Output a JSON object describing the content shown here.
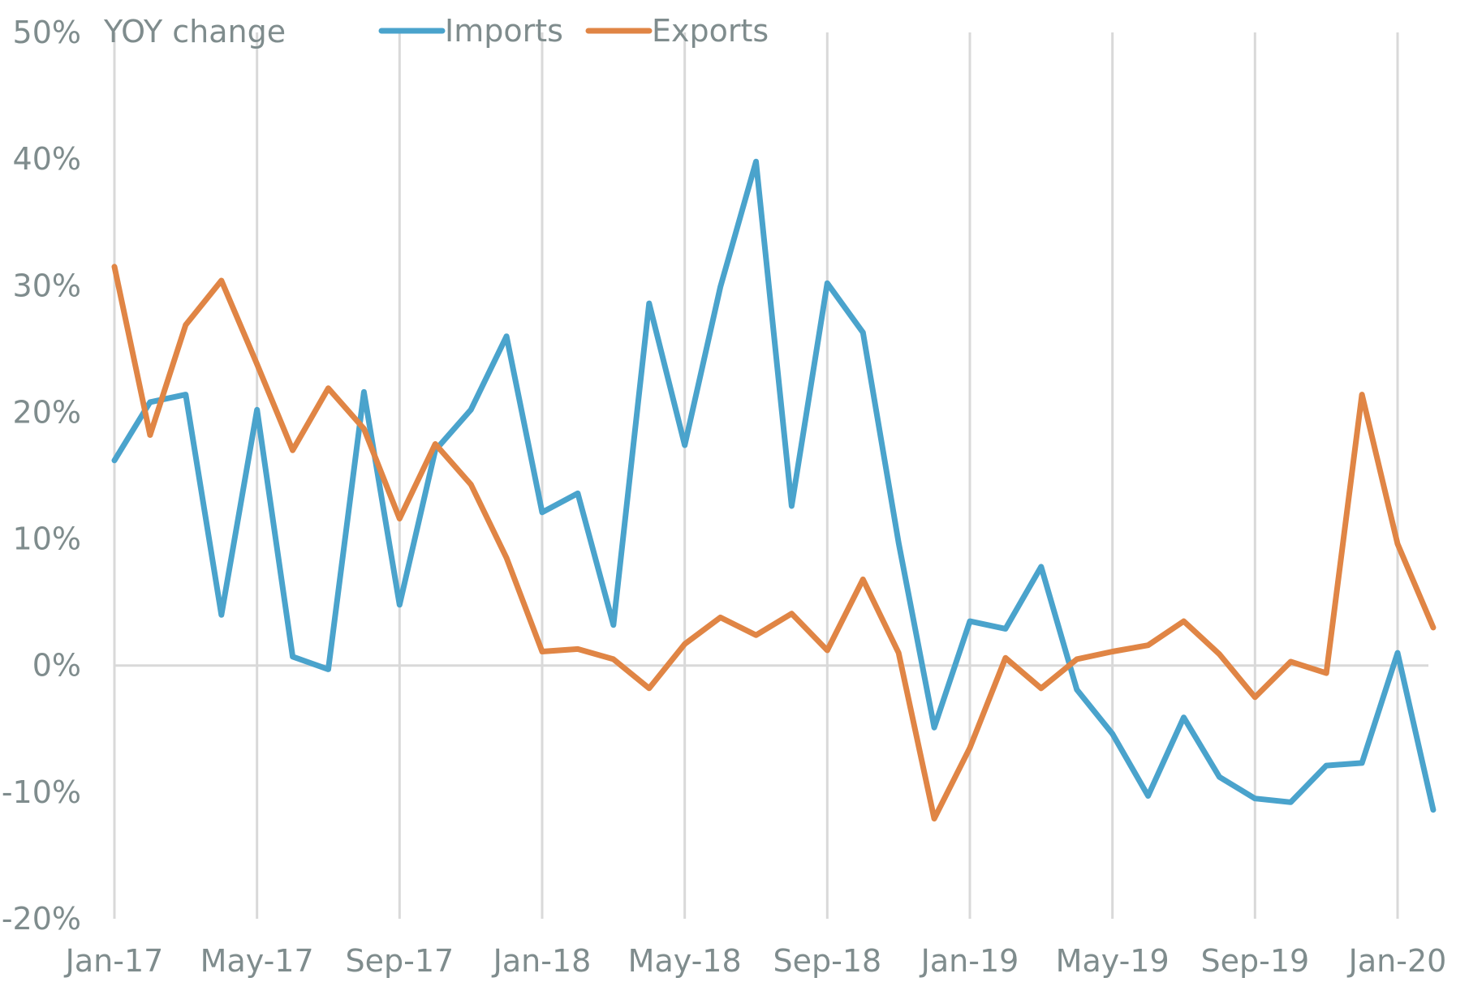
{
  "chart_data": {
    "type": "line",
    "title": "YOY change",
    "xlabel": "",
    "ylabel": "",
    "ylim": [
      -20,
      50
    ],
    "y_ticks": [
      -20,
      -10,
      0,
      10,
      20,
      30,
      40,
      50
    ],
    "y_tick_labels": [
      "-20%",
      "-10%",
      "0%",
      "10%",
      "20%",
      "30%",
      "40%",
      "50%"
    ],
    "x_tick_labels": [
      "Jan-17",
      "May-17",
      "Sep-17",
      "Jan-18",
      "May-18",
      "Sep-18",
      "Jan-19",
      "May-19",
      "Sep-19",
      "Jan-20"
    ],
    "x_tick_indices": [
      0,
      4,
      8,
      12,
      16,
      20,
      24,
      28,
      32,
      36
    ],
    "x": [
      "Jan-17",
      "Feb-17",
      "Mar-17",
      "Apr-17",
      "May-17",
      "Jun-17",
      "Jul-17",
      "Aug-17",
      "Sep-17",
      "Oct-17",
      "Nov-17",
      "Dec-17",
      "Jan-18",
      "Feb-18",
      "Mar-18",
      "Apr-18",
      "May-18",
      "Jun-18",
      "Jul-18",
      "Aug-18",
      "Sep-18",
      "Oct-18",
      "Nov-18",
      "Dec-18",
      "Jan-19",
      "Feb-19",
      "Mar-19",
      "Apr-19",
      "May-19",
      "Jun-19",
      "Jul-19",
      "Aug-19",
      "Sep-19",
      "Oct-19",
      "Nov-19",
      "Dec-19",
      "Jan-20",
      "Feb-20"
    ],
    "grid": "vertical",
    "legend_position": "top",
    "series": [
      {
        "name": "Imports",
        "color": "#4aa3cc",
        "values": [
          16.2,
          20.8,
          21.4,
          4.0,
          20.2,
          0.7,
          -0.3,
          21.6,
          4.8,
          17.0,
          20.2,
          26.0,
          12.1,
          13.6,
          3.2,
          28.6,
          17.4,
          29.9,
          39.8,
          12.6,
          30.2,
          26.3,
          9.7,
          -4.9,
          3.5,
          2.9,
          7.8,
          -1.9,
          -5.4,
          -10.3,
          -4.1,
          -8.8,
          -10.5,
          -10.8,
          -7.9,
          -7.7,
          1.0,
          -11.4
        ]
      },
      {
        "name": "Exports",
        "color": "#e08545",
        "values": [
          31.5,
          18.2,
          26.9,
          30.4,
          23.8,
          17.0,
          21.9,
          18.7,
          11.6,
          17.5,
          14.3,
          8.5,
          1.1,
          1.3,
          0.5,
          -1.8,
          1.7,
          3.8,
          2.4,
          4.1,
          1.2,
          6.8,
          1.0,
          -12.1,
          -6.5,
          0.6,
          -1.8,
          0.5,
          1.1,
          1.6,
          3.5,
          0.9,
          -2.5,
          0.3,
          -0.6,
          21.4,
          9.6,
          3.0
        ]
      }
    ]
  },
  "colors": {
    "gridline": "#d9d9d9",
    "text": "#7f8c8d"
  }
}
